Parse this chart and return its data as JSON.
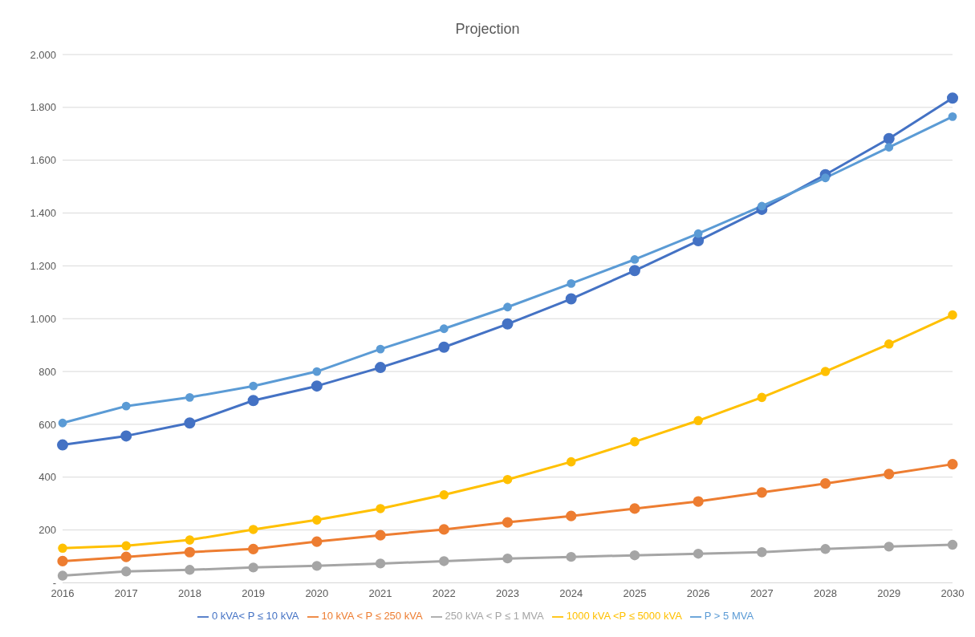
{
  "chart_data": {
    "type": "line",
    "title": "Projection",
    "categories": [
      "2016",
      "2017",
      "2018",
      "2019",
      "2020",
      "2021",
      "2022",
      "2023",
      "2024",
      "2025",
      "2026",
      "2027",
      "2028",
      "2029",
      "2030"
    ],
    "series": [
      {
        "name": "0 kVA< P ≤ 10 kVA",
        "color": "#4472c4",
        "values": [
          522,
          556,
          605,
          690,
          745,
          815,
          892,
          980,
          1075,
          1182,
          1295,
          1414,
          1545,
          1682,
          1835
        ]
      },
      {
        "name": "10 kVA < P ≤ 250 kVA",
        "color": "#ed7d31",
        "values": [
          82,
          98,
          116,
          128,
          156,
          180,
          202,
          229,
          253,
          281,
          308,
          342,
          376,
          412,
          449
        ]
      },
      {
        "name": "250 kVA < P ≤ 1 MVA",
        "color": "#a5a5a5",
        "values": [
          27,
          43,
          49,
          58,
          64,
          73,
          82,
          92,
          98,
          104,
          110,
          116,
          128,
          137,
          144
        ]
      },
      {
        "name": "1000 kVA <P ≤ 5000 kVA",
        "color": "#ffc000",
        "values": [
          131,
          140,
          162,
          202,
          238,
          281,
          333,
          391,
          458,
          534,
          614,
          702,
          800,
          904,
          1014
        ]
      },
      {
        "name": "P > 5 MVA",
        "color": "#5b9bd5",
        "values": [
          605,
          669,
          702,
          745,
          800,
          885,
          962,
          1044,
          1133,
          1224,
          1322,
          1426,
          1533,
          1649,
          1765
        ]
      }
    ],
    "ylim": [
      0,
      2000
    ],
    "yticks": [
      {
        "value": 0,
        "label": "-"
      },
      200,
      400,
      600,
      800,
      {
        "value": 1000,
        "label": "1.000"
      },
      {
        "value": 1200,
        "label": "1.200"
      },
      {
        "value": 1400,
        "label": "1.400"
      },
      {
        "value": 1600,
        "label": "1.600"
      },
      {
        "value": 1800,
        "label": "1.800"
      },
      {
        "value": 2000,
        "label": "2.000"
      }
    ],
    "grid": "y",
    "legend": "bottom",
    "marker": "circle",
    "line_style": "solid"
  }
}
